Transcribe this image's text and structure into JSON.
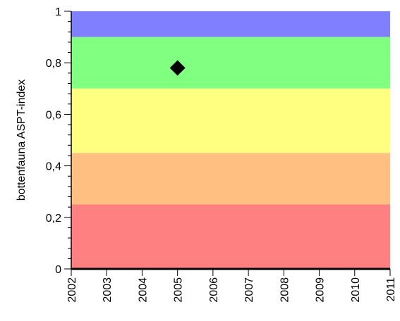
{
  "chart_data": {
    "type": "scatter",
    "title": "",
    "xlabel": "",
    "ylabel": "bottenfauna ASPT-index",
    "xlim": [
      2002,
      2011
    ],
    "ylim": [
      0,
      1
    ],
    "x_ticks": [
      "2002",
      "2003",
      "2004",
      "2005",
      "2006",
      "2007",
      "2008",
      "2009",
      "2010",
      "2011"
    ],
    "y_ticks": [
      {
        "value": 0,
        "label": "0"
      },
      {
        "value": 0.2,
        "label": "0,2"
      },
      {
        "value": 0.4,
        "label": "0,4"
      },
      {
        "value": 0.6,
        "label": "0,6"
      },
      {
        "value": 0.8,
        "label": "0,8"
      },
      {
        "value": 1,
        "label": "1"
      }
    ],
    "bands": [
      {
        "from": 0.9,
        "to": 1.0,
        "color": "#8080ff"
      },
      {
        "from": 0.7,
        "to": 0.9,
        "color": "#80ff80"
      },
      {
        "from": 0.45,
        "to": 0.7,
        "color": "#ffff80"
      },
      {
        "from": 0.25,
        "to": 0.45,
        "color": "#ffbf80"
      },
      {
        "from": 0.0,
        "to": 0.25,
        "color": "#ff8080"
      }
    ],
    "series": [
      {
        "marker": "diamond",
        "color": "#000000",
        "points": [
          {
            "x": 2005,
            "y": 0.78
          }
        ]
      }
    ],
    "grid": false,
    "legend": "none"
  }
}
